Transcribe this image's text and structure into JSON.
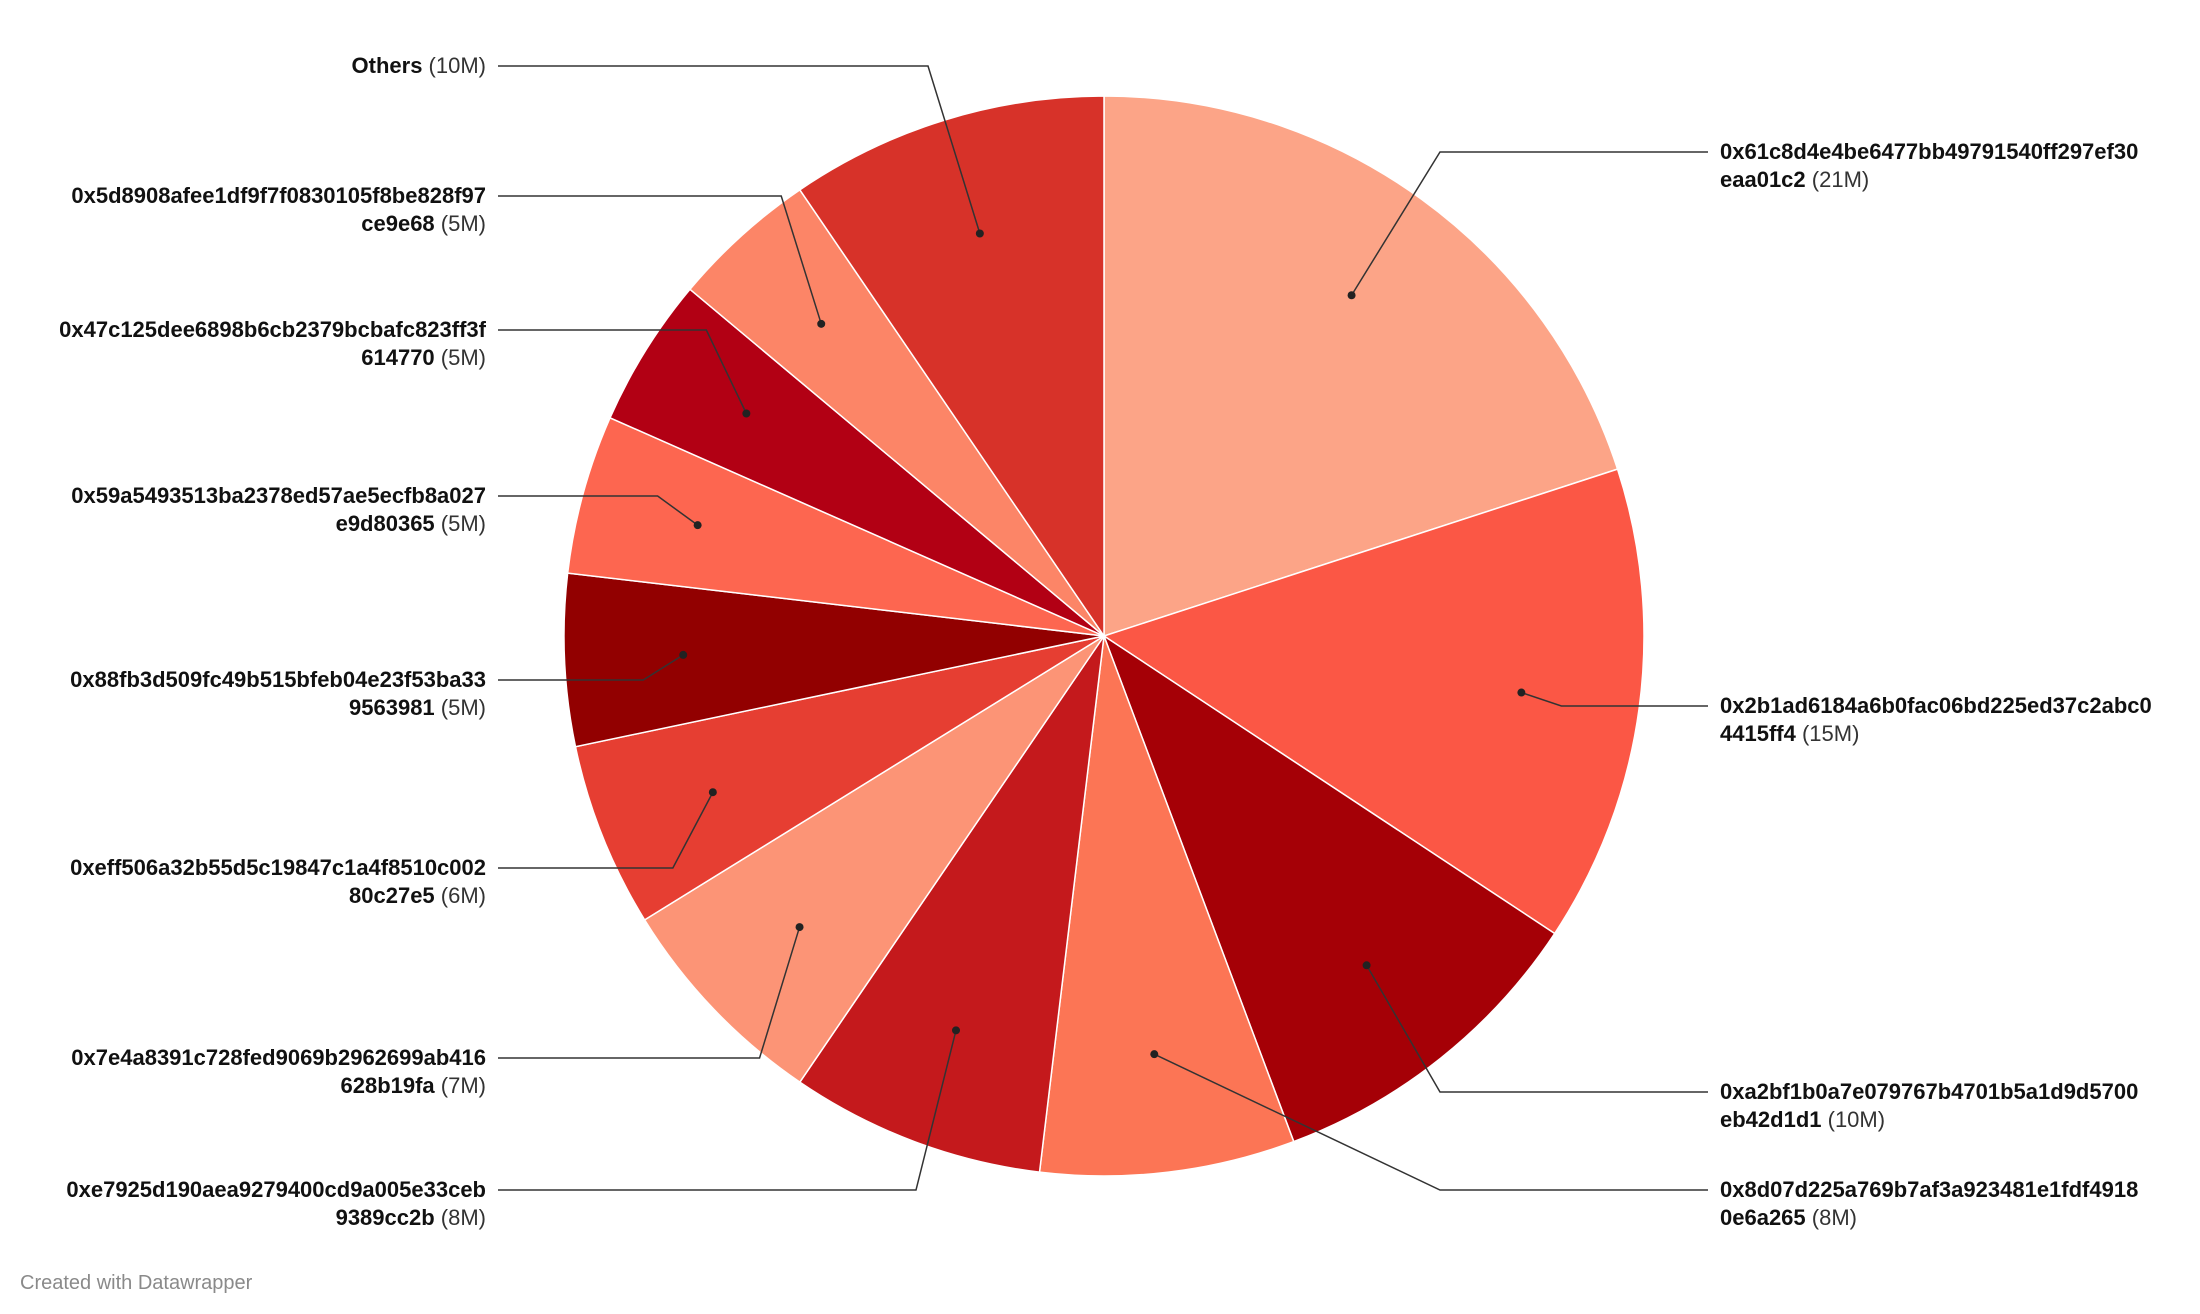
{
  "chart_data": {
    "type": "pie",
    "slices": [
      {
        "name": "0x61c8d4e4be6477bb49791540ff297ef30eaa01c2",
        "label_line1": "0x61c8d4e4be6477bb49791540ff297ef30",
        "label_line2": "eaa01c2",
        "value_label": "(21M)",
        "value": 21,
        "color": "#fca487"
      },
      {
        "name": "0x2b1ad6184a6b0fac06bd225ed37c2abc04415ff4",
        "label_line1": "0x2b1ad6184a6b0fac06bd225ed37c2abc0",
        "label_line2": "4415ff4",
        "value_label": "(15M)",
        "value": 15,
        "color": "#fb5745"
      },
      {
        "name": "0xa2bf1b0a7e079767b4701b5a1d9d5700eb42d1d1",
        "label_line1": "0xa2bf1b0a7e079767b4701b5a1d9d5700",
        "label_line2": "eb42d1d1",
        "value_label": "(10M)",
        "value": 10.5,
        "color": "#a50006"
      },
      {
        "name": "0x8d07d225a769b7af3a923481e1fdf49180e6a265",
        "label_line1": "0x8d07d225a769b7af3a923481e1fdf4918",
        "label_line2": "0e6a265",
        "value_label": "(8M)",
        "value": 8,
        "color": "#fc7555"
      },
      {
        "name": "0xe7925d190aea9279400cd9a005e33ceb9389cc2b",
        "label_line1": "0xe7925d190aea9279400cd9a005e33ceb",
        "label_line2": "9389cc2b",
        "value_label": "(8M)",
        "value": 8,
        "color": "#c4191c"
      },
      {
        "name": "0x7e4a8391c728fed9069b2962699ab416628b19fa",
        "label_line1": "0x7e4a8391c728fed9069b2962699ab416",
        "label_line2": "628b19fa",
        "value_label": "(7M)",
        "value": 7,
        "color": "#fc9476"
      },
      {
        "name": "0xeff506a32b55d5c19847c1a4f8510c00280c27e5",
        "label_line1": "0xeff506a32b55d5c19847c1a4f8510c002",
        "label_line2": "80c27e5",
        "value_label": "(6M)",
        "value": 5.8,
        "color": "#e63e32"
      },
      {
        "name": "0x88fb3d509fc49b515bfeb04e23f53ba339563981",
        "label_line1": "0x88fb3d509fc49b515bfeb04e23f53ba33",
        "label_line2": "9563981",
        "value_label": "(5M)",
        "value": 5.4,
        "color": "#920000"
      },
      {
        "name": "0x59a5493513ba2378ed57ae5ecfb8a027e9d80365",
        "label_line1": "0x59a5493513ba2378ed57ae5ecfb8a027",
        "label_line2": "e9d80365",
        "value_label": "(5M)",
        "value": 5,
        "color": "#fd6650"
      },
      {
        "name": "0x47c125dee6898b6cb2379bcbafc823ff3f614770",
        "label_line1": "0x47c125dee6898b6cb2379bcbafc823ff3f",
        "label_line2": "614770",
        "value_label": "(5M)",
        "value": 4.7,
        "color": "#b20014"
      },
      {
        "name": "0x5d8908afee1df9f7f0830105f8be828f97ce9e68",
        "label_line1": "0x5d8908afee1df9f7f0830105f8be828f97",
        "label_line2": "ce9e68",
        "value_label": "(5M)",
        "value": 4.6,
        "color": "#fc8567"
      },
      {
        "name": "Others",
        "label_line1": "Others",
        "label_line2": "",
        "value_label": "(10M)",
        "value": 10,
        "color": "#d73229"
      }
    ]
  },
  "footer": "Created with Datawrapper"
}
